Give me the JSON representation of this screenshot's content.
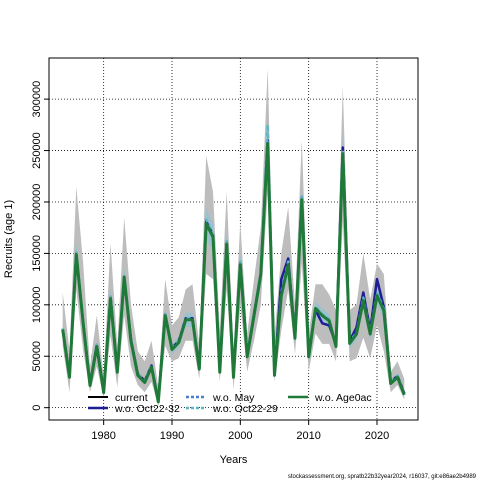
{
  "chart_data": {
    "type": "line",
    "xlabel": "Years",
    "ylabel": "Recruits (age 1)",
    "xlim": [
      1972,
      2026
    ],
    "ylim": [
      -12000,
      340000
    ],
    "xticks": [
      1980,
      1990,
      2000,
      2010,
      2020
    ],
    "yticks": [
      0,
      50000,
      100000,
      150000,
      200000,
      250000,
      300000
    ],
    "ytick_labels": [
      "0",
      "50000",
      "100000",
      "150000",
      "200000",
      "250000",
      "300000"
    ],
    "grid": true,
    "legend_position": "bottom",
    "footer": "stockassessment.org, spratb22b32year2024, r16037, git:e86ae2b4989",
    "x": [
      1974,
      1975,
      1976,
      1977,
      1978,
      1979,
      1980,
      1981,
      1982,
      1983,
      1984,
      1985,
      1986,
      1987,
      1988,
      1989,
      1990,
      1991,
      1992,
      1993,
      1994,
      1995,
      1996,
      1997,
      1998,
      1999,
      2000,
      2001,
      2002,
      2003,
      2004,
      2005,
      2006,
      2007,
      2008,
      2009,
      2010,
      2011,
      2012,
      2013,
      2014,
      2015,
      2016,
      2017,
      2018,
      2019,
      2020,
      2021,
      2022,
      2023,
      2024
    ],
    "ci_lower": [
      60000,
      15000,
      115000,
      55000,
      15000,
      40000,
      10000,
      70000,
      20000,
      90000,
      40000,
      22000,
      15000,
      25000,
      2000,
      60000,
      45000,
      48000,
      65000,
      65000,
      28000,
      130000,
      125000,
      25000,
      115000,
      18000,
      100000,
      35000,
      65000,
      100000,
      210000,
      25000,
      75000,
      115000,
      52000,
      140000,
      35000,
      72000,
      62000,
      62000,
      45000,
      180000,
      45000,
      48000,
      68000,
      48000,
      80000,
      55000,
      15000,
      22000,
      8000
    ],
    "ci_upper": [
      112000,
      55000,
      215000,
      140000,
      40000,
      90000,
      30000,
      160000,
      60000,
      185000,
      100000,
      55000,
      45000,
      65000,
      20000,
      125000,
      80000,
      88000,
      115000,
      120000,
      60000,
      245000,
      210000,
      75000,
      210000,
      55000,
      180000,
      72000,
      125000,
      175000,
      330000,
      70000,
      150000,
      195000,
      100000,
      260000,
      72000,
      120000,
      120000,
      110000,
      95000,
      312000,
      95000,
      100000,
      150000,
      105000,
      140000,
      130000,
      35000,
      45000,
      28000
    ],
    "series": [
      {
        "name": "current",
        "color": "#000000",
        "dash": "solid",
        "values": [
          76000,
          30000,
          150000,
          82000,
          22000,
          60000,
          15000,
          107000,
          35000,
          128000,
          65000,
          32000,
          25000,
          40000,
          6000,
          90000,
          57000,
          64000,
          86000,
          86000,
          38000,
          180000,
          167000,
          35000,
          160000,
          30000,
          140000,
          50000,
          90000,
          130000,
          258000,
          32000,
          110000,
          140000,
          68000,
          203000,
          50000,
          97000,
          90000,
          85000,
          60000,
          248000,
          63000,
          72000,
          105000,
          72000,
          110000,
          95000,
          24000,
          30000,
          13000
        ]
      },
      {
        "name": "w.o. Oct22-32",
        "color": "#1d1d96",
        "dash": "solid",
        "values": [
          77000,
          31000,
          149000,
          83000,
          23000,
          61000,
          16000,
          108000,
          36000,
          127000,
          66000,
          33000,
          26000,
          41000,
          7000,
          91000,
          58000,
          65000,
          87000,
          87000,
          39000,
          181000,
          168000,
          36000,
          161000,
          31000,
          141000,
          51000,
          91000,
          131000,
          260000,
          33000,
          125000,
          145000,
          70000,
          205000,
          52000,
          95000,
          82000,
          80000,
          62000,
          253000,
          65000,
          78000,
          112000,
          75000,
          125000,
          98000,
          25000,
          31000,
          14000
        ]
      },
      {
        "name": "w.o. May",
        "color": "#4a7ec8",
        "dash": "dashed",
        "values": [
          76500,
          30500,
          150500,
          82500,
          22500,
          60500,
          15500,
          107500,
          35500,
          128500,
          65500,
          32500,
          25500,
          40500,
          6500,
          90500,
          57500,
          64500,
          86500,
          86500,
          38500,
          180500,
          167500,
          35500,
          160500,
          30500,
          140500,
          50500,
          90500,
          130500,
          258500,
          32500,
          111000,
          141000,
          68500,
          204000,
          50500,
          97500,
          90500,
          85500,
          60500,
          249000,
          63500,
          72500,
          106000,
          72500,
          111000,
          95500,
          24500,
          30500,
          13500
        ]
      },
      {
        "name": "w.o. Oct22-29",
        "color": "#5fb7c4",
        "dash": "dashed",
        "values": [
          77000,
          31000,
          151000,
          83000,
          23000,
          61000,
          16000,
          108000,
          36000,
          129000,
          66000,
          33000,
          26000,
          41000,
          7000,
          91000,
          58000,
          65000,
          87000,
          87000,
          39000,
          183000,
          169000,
          36000,
          162000,
          31000,
          142000,
          51000,
          91000,
          131000,
          275000,
          33000,
          112000,
          142000,
          69000,
          205000,
          51000,
          98000,
          91000,
          86000,
          61000,
          250000,
          64000,
          73000,
          107000,
          73000,
          112000,
          96000,
          25000,
          31000,
          14000
        ]
      },
      {
        "name": "w.o. Age0ac",
        "color": "#1f7a3a",
        "dash": "solid",
        "values": [
          76000,
          29500,
          149000,
          81500,
          21500,
          59500,
          14500,
          106000,
          34500,
          127000,
          64500,
          31500,
          24500,
          39500,
          5500,
          89500,
          56500,
          63500,
          85500,
          85500,
          37500,
          179000,
          166000,
          34500,
          159000,
          29500,
          139000,
          49500,
          89500,
          129500,
          257000,
          31500,
          109000,
          139000,
          67500,
          202000,
          49500,
          96500,
          89500,
          84500,
          59500,
          247000,
          62500,
          71500,
          104000,
          71500,
          109000,
          94500,
          23500,
          29500,
          12500
        ]
      }
    ]
  }
}
